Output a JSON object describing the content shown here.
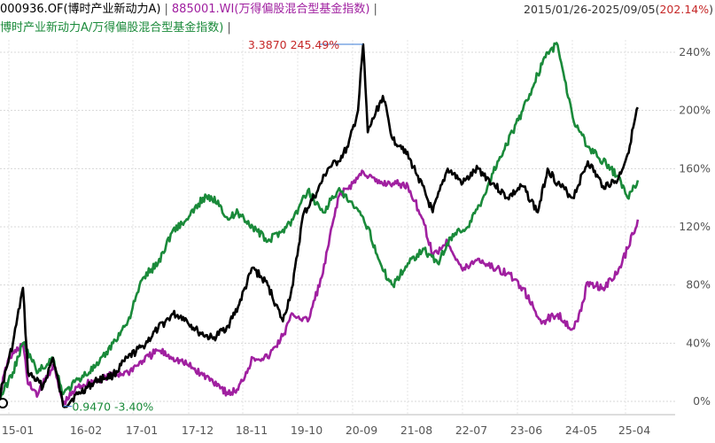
{
  "header": {
    "fund_code_name": "000936.OF(博时产业新动力A)",
    "fund_color": "#000000",
    "index_code_name": "885001.WI(万得偏股混合型基金指数)",
    "index_color": "#a020a0",
    "date_range": "2015/01/26-2025/09/05(",
    "date_range_pct": "202.14%",
    "date_range_end": ")",
    "ratio_series_name": "博时产业新动力A/万得偏股混合型基金指数)",
    "ratio_color": "#1a8a3a",
    "separator": "|"
  },
  "annotations": {
    "max_label": "3.3870 245.49%",
    "min_label": "0.9470 -3.40%"
  },
  "chart_data": {
    "type": "line",
    "title": "",
    "x_ticks": [
      "15-01",
      "16-02",
      "17-01",
      "17-12",
      "18-11",
      "19-10",
      "20-09",
      "21-08",
      "22-07",
      "23-06",
      "24-05",
      "25-04"
    ],
    "y_ticks": [
      "0%",
      "40%",
      "80%",
      "120%",
      "160%",
      "200%",
      "240%"
    ],
    "ylim": [
      -5,
      270
    ],
    "grid": true,
    "series": [
      {
        "name": "000936.OF(博时产业新动力A)",
        "color": "#000000",
        "points": [
          [
            "2015-01",
            0
          ],
          [
            "2015-04",
            40
          ],
          [
            "2015-06",
            78
          ],
          [
            "2015-07",
            20
          ],
          [
            "2015-10",
            10
          ],
          [
            "2015-12",
            30
          ],
          [
            "2016-02",
            -3.4
          ],
          [
            "2016-05",
            5
          ],
          [
            "2016-09",
            15
          ],
          [
            "2016-12",
            18
          ],
          [
            "2017-03",
            30
          ],
          [
            "2017-06",
            38
          ],
          [
            "2017-09",
            50
          ],
          [
            "2017-12",
            60
          ],
          [
            "2018-02",
            58
          ],
          [
            "2018-05",
            48
          ],
          [
            "2018-08",
            43
          ],
          [
            "2018-11",
            52
          ],
          [
            "2019-01",
            65
          ],
          [
            "2019-04",
            92
          ],
          [
            "2019-07",
            80
          ],
          [
            "2019-10",
            55
          ],
          [
            "2019-12",
            80
          ],
          [
            "2020-02",
            128
          ],
          [
            "2020-05",
            145
          ],
          [
            "2020-07",
            160
          ],
          [
            "2020-09",
            165
          ],
          [
            "2020-11",
            175
          ],
          [
            "2021-01",
            200
          ],
          [
            "2021-02",
            245.49
          ],
          [
            "2021-03",
            185
          ],
          [
            "2021-06",
            210
          ],
          [
            "2021-08",
            180
          ],
          [
            "2021-10",
            175
          ],
          [
            "2022-01",
            155
          ],
          [
            "2022-04",
            130
          ],
          [
            "2022-07",
            160
          ],
          [
            "2022-10",
            150
          ],
          [
            "2023-01",
            160
          ],
          [
            "2023-04",
            150
          ],
          [
            "2023-07",
            140
          ],
          [
            "2023-10",
            148
          ],
          [
            "2024-01",
            130
          ],
          [
            "2024-03",
            160
          ],
          [
            "2024-05",
            150
          ],
          [
            "2024-08",
            140
          ],
          [
            "2024-11",
            165
          ],
          [
            "2025-02",
            148
          ],
          [
            "2025-05",
            152
          ],
          [
            "2025-07",
            170
          ],
          [
            "2025-09",
            202.14
          ]
        ]
      },
      {
        "name": "885001.WI(万得偏股混合型基金指数)",
        "color": "#a020a0",
        "points": [
          [
            "2015-01",
            0
          ],
          [
            "2015-03",
            28
          ],
          [
            "2015-06",
            40
          ],
          [
            "2015-07",
            12
          ],
          [
            "2015-09",
            5
          ],
          [
            "2015-12",
            25
          ],
          [
            "2016-02",
            -2
          ],
          [
            "2016-05",
            10
          ],
          [
            "2016-09",
            15
          ],
          [
            "2016-12",
            18
          ],
          [
            "2017-03",
            20
          ],
          [
            "2017-06",
            28
          ],
          [
            "2017-09",
            35
          ],
          [
            "2017-12",
            30
          ],
          [
            "2018-03",
            25
          ],
          [
            "2018-06",
            18
          ],
          [
            "2018-09",
            12
          ],
          [
            "2018-11",
            5
          ],
          [
            "2019-01",
            8
          ],
          [
            "2019-04",
            30
          ],
          [
            "2019-07",
            30
          ],
          [
            "2019-10",
            45
          ],
          [
            "2019-12",
            60
          ],
          [
            "2020-03",
            55
          ],
          [
            "2020-06",
            88
          ],
          [
            "2020-09",
            140
          ],
          [
            "2020-12",
            150
          ],
          [
            "2021-02",
            158
          ],
          [
            "2021-05",
            150
          ],
          [
            "2021-08",
            150
          ],
          [
            "2021-11",
            148
          ],
          [
            "2022-02",
            125
          ],
          [
            "2022-04",
            100
          ],
          [
            "2022-07",
            110
          ],
          [
            "2022-10",
            90
          ],
          [
            "2023-01",
            98
          ],
          [
            "2023-04",
            92
          ],
          [
            "2023-07",
            88
          ],
          [
            "2023-10",
            78
          ],
          [
            "2024-01",
            58
          ],
          [
            "2024-02",
            55
          ],
          [
            "2024-05",
            60
          ],
          [
            "2024-08",
            50
          ],
          [
            "2024-09",
            55
          ],
          [
            "2024-11",
            82
          ],
          [
            "2025-02",
            78
          ],
          [
            "2025-05",
            88
          ],
          [
            "2025-07",
            105
          ],
          [
            "2025-09",
            125
          ]
        ]
      },
      {
        "name": "博时产业新动力A/万得偏股混合型基金指数",
        "color": "#1a8a3a",
        "points": [
          [
            "2015-01",
            0
          ],
          [
            "2015-04",
            20
          ],
          [
            "2015-06",
            40
          ],
          [
            "2015-09",
            20
          ],
          [
            "2015-12",
            30
          ],
          [
            "2016-02",
            5
          ],
          [
            "2016-05",
            15
          ],
          [
            "2016-09",
            25
          ],
          [
            "2016-12",
            40
          ],
          [
            "2017-03",
            55
          ],
          [
            "2017-06",
            85
          ],
          [
            "2017-09",
            95
          ],
          [
            "2017-12",
            118
          ],
          [
            "2018-03",
            125
          ],
          [
            "2018-06",
            140
          ],
          [
            "2018-09",
            138
          ],
          [
            "2018-11",
            125
          ],
          [
            "2019-01",
            130
          ],
          [
            "2019-04",
            120
          ],
          [
            "2019-07",
            110
          ],
          [
            "2019-10",
            118
          ],
          [
            "2019-12",
            125
          ],
          [
            "2020-03",
            145
          ],
          [
            "2020-06",
            130
          ],
          [
            "2020-09",
            145
          ],
          [
            "2020-12",
            135
          ],
          [
            "2021-03",
            120
          ],
          [
            "2021-06",
            90
          ],
          [
            "2021-08",
            80
          ],
          [
            "2021-11",
            95
          ],
          [
            "2022-02",
            105
          ],
          [
            "2022-05",
            95
          ],
          [
            "2022-08",
            115
          ],
          [
            "2022-11",
            120
          ],
          [
            "2023-02",
            140
          ],
          [
            "2023-05",
            165
          ],
          [
            "2023-08",
            185
          ],
          [
            "2023-10",
            200
          ],
          [
            "2024-01",
            225
          ],
          [
            "2024-03",
            240
          ],
          [
            "2024-05",
            245
          ],
          [
            "2024-08",
            195
          ],
          [
            "2024-11",
            175
          ],
          [
            "2025-02",
            165
          ],
          [
            "2025-05",
            155
          ],
          [
            "2025-07",
            140
          ],
          [
            "2025-09",
            152
          ]
        ]
      }
    ],
    "max_point": {
      "series": 0,
      "date": "2021-02",
      "value": 245.49,
      "label": "3.3870 245.49%"
    },
    "min_point": {
      "series": 0,
      "date": "2016-02",
      "value": -3.4,
      "label": "0.9470 -3.40%"
    }
  }
}
